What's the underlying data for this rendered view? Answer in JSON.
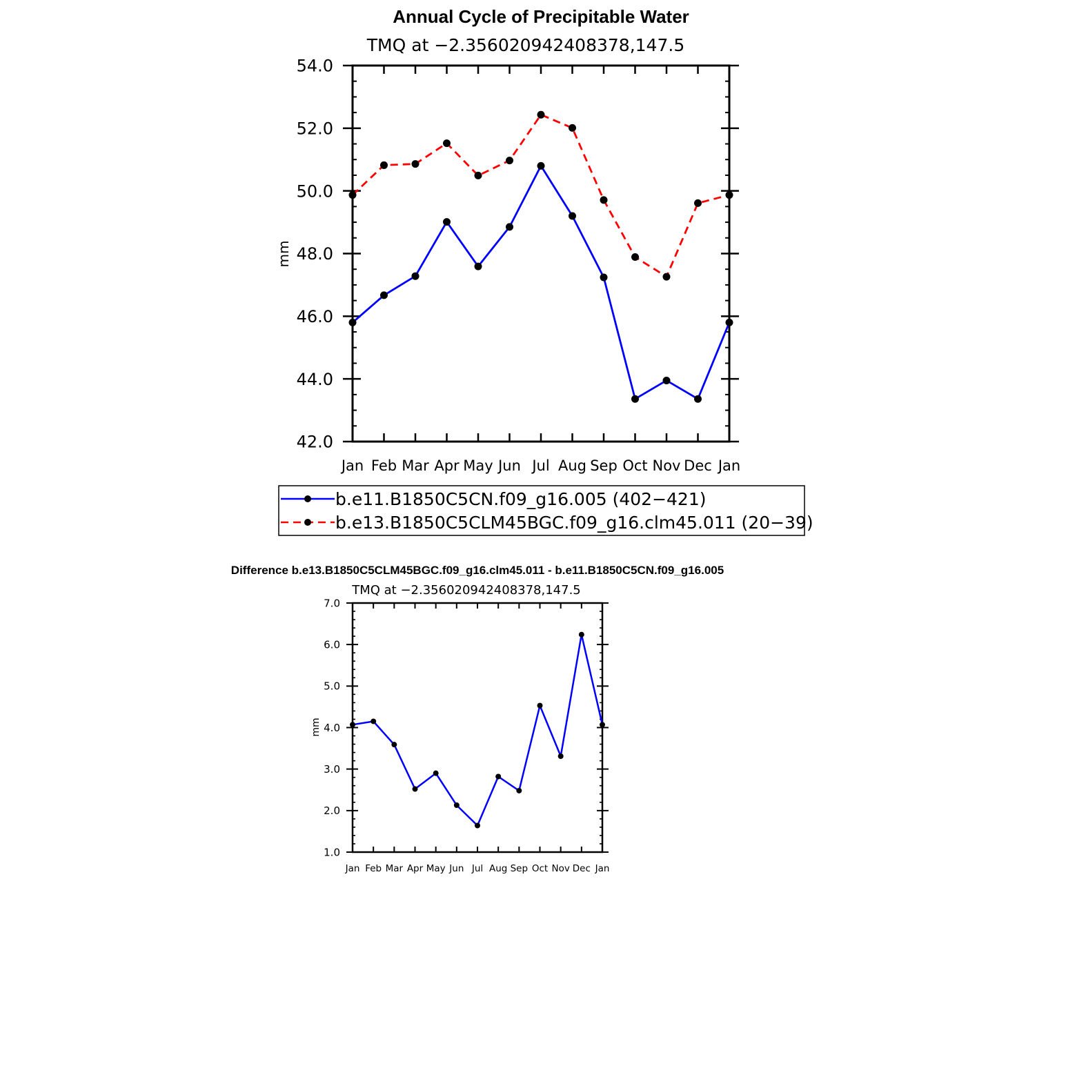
{
  "chart_data": [
    {
      "type": "line",
      "title": "Annual Cycle of Precipitable Water",
      "subtitle": "TMQ  at  −2.356020942408378,147.5",
      "xlabel": "",
      "ylabel": "mm",
      "categories": [
        "Jan",
        "Feb",
        "Mar",
        "Apr",
        "May",
        "Jun",
        "Jul",
        "Aug",
        "Sep",
        "Oct",
        "Nov",
        "Dec",
        "Jan"
      ],
      "ylim": [
        42.0,
        54.0
      ],
      "yticks": [
        "42.0",
        "44.0",
        "46.0",
        "48.0",
        "50.0",
        "52.0",
        "54.0"
      ],
      "legend_position": "bottom",
      "series": [
        {
          "name": "b.e11.B1850C5CN.f09_g16.005 (402−421)",
          "color": "#0000ff",
          "dash": "solid",
          "values": [
            45.8,
            46.67,
            47.28,
            49.01,
            47.59,
            48.85,
            50.8,
            49.2,
            47.24,
            43.36,
            43.95,
            43.36,
            45.8
          ]
        },
        {
          "name": "b.e13.B1850C5CLM45BGC.f09_g16.clm45.011 (20−39)",
          "color": "#ff0000",
          "dash": "dashed",
          "values": [
            49.87,
            50.82,
            50.86,
            51.52,
            50.49,
            50.97,
            52.43,
            52.01,
            49.71,
            47.89,
            47.26,
            49.61,
            49.87
          ]
        }
      ]
    },
    {
      "type": "line",
      "title": "Difference b.e13.B1850C5CLM45BGC.f09_g16.clm45.011 - b.e11.B1850C5CN.f09_g16.005",
      "subtitle": "TMQ  at  −2.356020942408378,147.5",
      "xlabel": "",
      "ylabel": "mm",
      "categories": [
        "Jan",
        "Feb",
        "Mar",
        "Apr",
        "May",
        "Jun",
        "Jul",
        "Aug",
        "Sep",
        "Oct",
        "Nov",
        "Dec",
        "Jan"
      ],
      "ylim": [
        1.0,
        7.0
      ],
      "yticks": [
        "1.0",
        "2.0",
        "3.0",
        "4.0",
        "5.0",
        "6.0",
        "7.0"
      ],
      "series": [
        {
          "color": "#0000ff",
          "dash": "solid",
          "values": [
            4.07,
            4.15,
            3.59,
            2.52,
            2.9,
            2.13,
            1.64,
            2.82,
            2.48,
            4.53,
            3.31,
            6.24,
            4.07
          ]
        }
      ]
    }
  ]
}
